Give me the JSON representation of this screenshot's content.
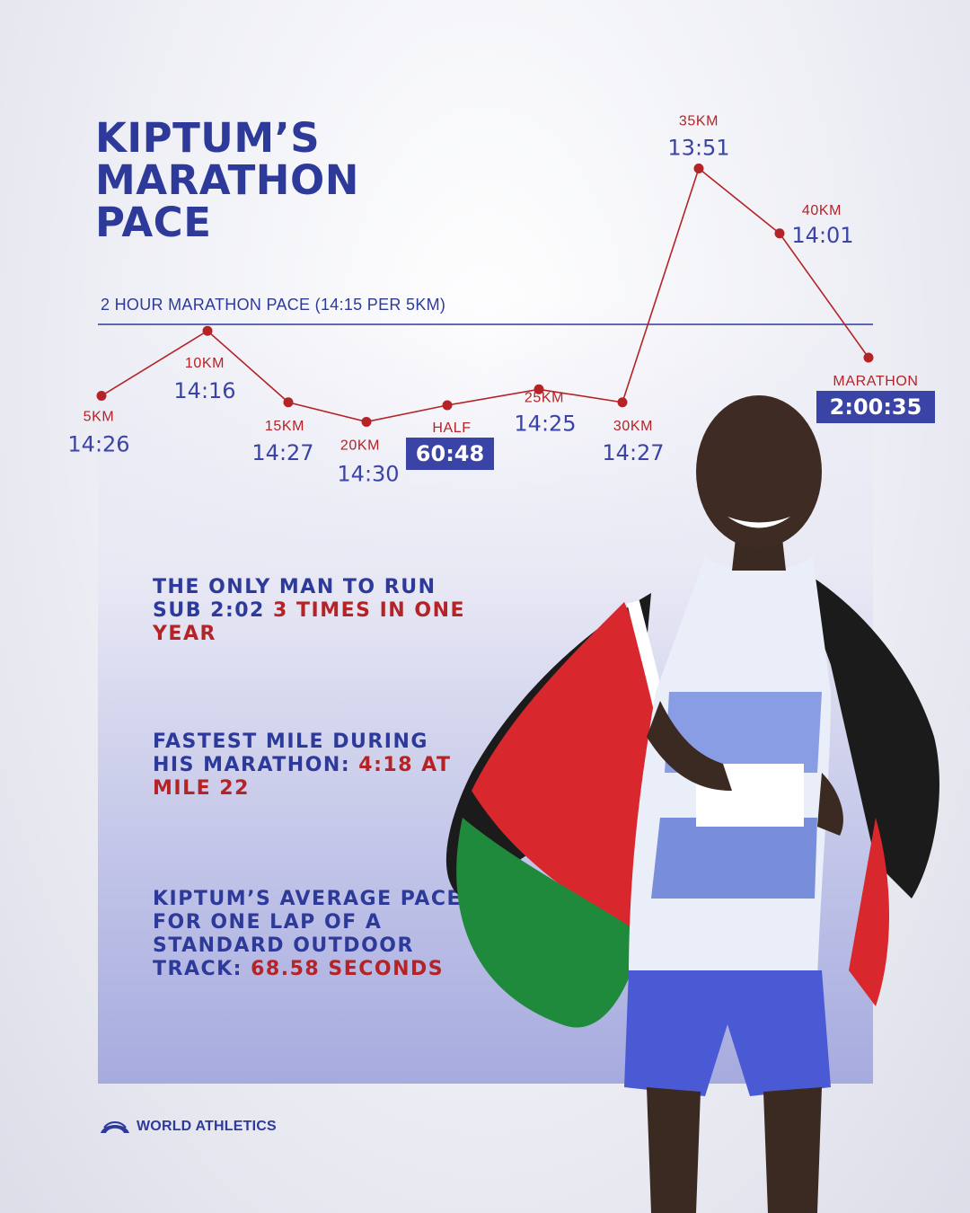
{
  "title": "KIPTUM’S\nMARATHON\nPACE",
  "reference_line_label": "2 HOUR MARATHON PACE (14:15 PER 5KM)",
  "colors": {
    "blue": "#2e3a9a",
    "red": "#b42326",
    "label_blue": "#3a44a6"
  },
  "chart_data": {
    "type": "line",
    "title": "KIPTUM’S MARATHON PACE",
    "y_unit": "5km split time (mm:ss); lower = faster, plotted upward",
    "categories": [
      "5KM",
      "10KM",
      "15KM",
      "20KM",
      "HALF",
      "25KM",
      "30KM",
      "35KM",
      "40KM",
      "MARATHON"
    ],
    "labels": [
      "14:26",
      "14:16",
      "14:27",
      "14:30",
      "60:48",
      "14:25",
      "14:27",
      "13:51",
      "14:01",
      "2:00:35"
    ],
    "values_seconds": [
      866,
      856,
      867,
      870,
      null,
      865,
      867,
      831,
      841,
      null
    ],
    "boxed": [
      false,
      false,
      false,
      false,
      true,
      false,
      false,
      false,
      false,
      true
    ],
    "reference_line": {
      "label": "2 HOUR MARATHON PACE (14:15 PER 5KM)",
      "value_seconds": 855
    },
    "grid": false,
    "legend": "none"
  },
  "facts": [
    {
      "normal": "THE ONLY MAN TO RUN SUB 2:02 ",
      "highlight": "3 TIMES IN ONE YEAR"
    },
    {
      "normal": "FASTEST MILE DURING HIS MARATHON: ",
      "highlight": "4:18 AT MILE 22"
    },
    {
      "normal": "KIPTUM’S AVERAGE PACE FOR ONE LAP OF A STANDARD OUTDOOR TRACK: ",
      "highlight": "68.58 SECONDS"
    }
  ],
  "brand": {
    "name": "WORLD ATHLETICS"
  },
  "athlete_photo": {
    "subject": "runner-draped-in-kenya-flag"
  }
}
